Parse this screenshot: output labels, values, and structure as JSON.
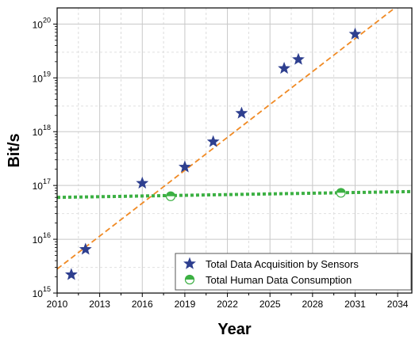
{
  "chart_data": {
    "type": "scatter",
    "xlabel": "Year",
    "ylabel": "Bit/s",
    "xlim": [
      2010,
      2035
    ],
    "ylim_log10": [
      15,
      20.3
    ],
    "y_scale": "log",
    "x_ticks": [
      2010,
      2013,
      2016,
      2019,
      2022,
      2025,
      2028,
      2031,
      2034
    ],
    "x_tick_labels": [
      "2010",
      "2013",
      "2016",
      "2019",
      "2022",
      "2025",
      "2028",
      "2031",
      "2034"
    ],
    "y_tick_exponents": [
      15,
      16,
      17,
      18,
      19,
      20
    ],
    "y_tick_labels": [
      {
        "base": "10",
        "exp": "15"
      },
      {
        "base": "10",
        "exp": "16"
      },
      {
        "base": "10",
        "exp": "17"
      },
      {
        "base": "10",
        "exp": "18"
      },
      {
        "base": "10",
        "exp": "19"
      },
      {
        "base": "10",
        "exp": "20"
      }
    ],
    "grid": true,
    "legend_position": "bottom-right",
    "series": [
      {
        "name": "Total Data Acquisition by Sensors",
        "marker": "star",
        "color": "#2e3f8f",
        "points": [
          {
            "x": 2011,
            "y": 2200000000000000.0
          },
          {
            "x": 2012,
            "y": 6500000000000000.0
          },
          {
            "x": 2016,
            "y": 1.1e+17
          },
          {
            "x": 2019,
            "y": 2.2e+17
          },
          {
            "x": 2021,
            "y": 6.5e+17
          },
          {
            "x": 2023,
            "y": 2.2e+18
          },
          {
            "x": 2026,
            "y": 1.5e+19
          },
          {
            "x": 2027,
            "y": 2.2e+19
          },
          {
            "x": 2031,
            "y": 6.5e+19
          }
        ],
        "trend": {
          "style": "dashed",
          "color": "#f08a24",
          "start": {
            "x": 2010,
            "y": 2800000000000000.0
          },
          "end": {
            "x": 2035,
            "y": 3.5e+20
          }
        }
      },
      {
        "name": "Total Human Data Consumption",
        "marker": "half-filled-circle",
        "color": "#3cb043",
        "points": [
          {
            "x": 2018,
            "y": 6.3e+16
          },
          {
            "x": 2030,
            "y": 7.3e+16
          }
        ],
        "trend": {
          "style": "dotted",
          "color": "#3cb043",
          "start": {
            "x": 2010,
            "y": 6e+16
          },
          "end": {
            "x": 2035,
            "y": 7.7e+16
          }
        }
      }
    ]
  }
}
